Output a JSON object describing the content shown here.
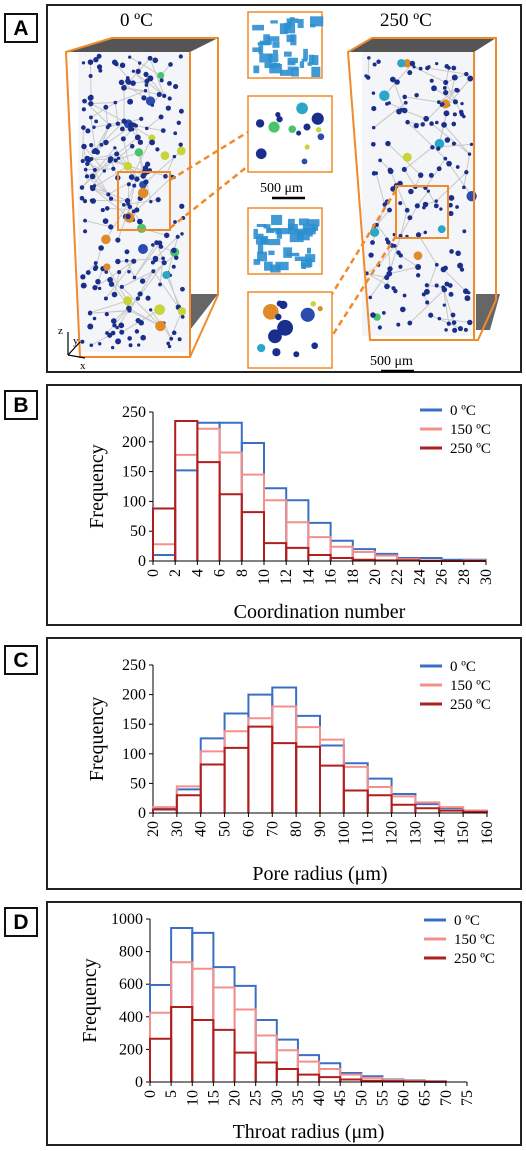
{
  "panel_a": {
    "tag": "A",
    "left_temp": "0 ºC",
    "right_temp": "250 ºC",
    "scale_center": "500 μm",
    "scale_right": "500 μm",
    "axes": {
      "x": "x",
      "y": "y",
      "z": "z"
    },
    "colors": {
      "frame": "#f08a2a",
      "pore": "#1a2f8c",
      "throat": "#c8c8c8"
    }
  },
  "chart_data": [
    {
      "panel": "B",
      "type": "bar",
      "xlabel": "Coordination number",
      "ylabel": "Frequency",
      "ylim": [
        0,
        250
      ],
      "yticks": [
        0,
        50,
        100,
        150,
        200,
        250
      ],
      "xticks": [
        "0",
        "2",
        "4",
        "6",
        "8",
        "10",
        "12",
        "14",
        "16",
        "18",
        "20",
        "22",
        "24",
        "26",
        "28",
        "30"
      ],
      "x": [
        0,
        2,
        4,
        6,
        8,
        10,
        12,
        14,
        16,
        18,
        20,
        22,
        24,
        26,
        28
      ],
      "bin_width": 2,
      "legend_position": "top-right",
      "series": [
        {
          "name": "0 ºC",
          "color": "#3a6fc4",
          "values": [
            10,
            152,
            232,
            232,
            198,
            122,
            102,
            64,
            34,
            20,
            12,
            5,
            5,
            2,
            2
          ]
        },
        {
          "name": "150 ºC",
          "color": "#f4908c",
          "values": [
            28,
            178,
            222,
            182,
            145,
            102,
            65,
            40,
            24,
            15,
            9,
            3,
            1,
            0,
            1
          ]
        },
        {
          "name": "250 ºC",
          "color": "#b01e1e",
          "values": [
            88,
            235,
            166,
            112,
            82,
            30,
            22,
            10,
            5,
            2,
            1,
            1,
            0,
            0,
            0
          ]
        }
      ]
    },
    {
      "panel": "C",
      "type": "bar",
      "xlabel": "Pore radius (μm)",
      "ylabel": "Frequency",
      "ylim": [
        0,
        250
      ],
      "yticks": [
        0,
        50,
        100,
        150,
        200,
        250
      ],
      "xticks": [
        "20",
        "30",
        "40",
        "50",
        "60",
        "70",
        "80",
        "90",
        "100",
        "110",
        "120",
        "130",
        "140",
        "150",
        "160"
      ],
      "x": [
        20,
        30,
        40,
        50,
        60,
        70,
        80,
        90,
        100,
        110,
        120,
        130,
        140,
        150
      ],
      "bin_width": 10,
      "legend_position": "top-right",
      "series": [
        {
          "name": "0 ºC",
          "color": "#3a6fc4",
          "values": [
            8,
            40,
            126,
            168,
            200,
            212,
            164,
            114,
            84,
            58,
            32,
            15,
            8,
            4
          ]
        },
        {
          "name": "150 ºC",
          "color": "#f4908c",
          "values": [
            10,
            45,
            104,
            138,
            160,
            180,
            145,
            124,
            78,
            44,
            28,
            18,
            10,
            4
          ]
        },
        {
          "name": "250 ºC",
          "color": "#b01e1e",
          "values": [
            6,
            30,
            82,
            110,
            146,
            118,
            112,
            80,
            38,
            30,
            14,
            8,
            4,
            2
          ]
        }
      ]
    },
    {
      "panel": "D",
      "type": "bar",
      "xlabel": "Throat radius (μm)",
      "ylabel": "Frequency",
      "ylim": [
        0,
        1000
      ],
      "yticks": [
        0,
        200,
        400,
        600,
        800,
        1000
      ],
      "xticks": [
        "0",
        "5",
        "10",
        "15",
        "20",
        "25",
        "30",
        "35",
        "40",
        "45",
        "50",
        "55",
        "60",
        "65",
        "70",
        "75"
      ],
      "x": [
        0,
        5,
        10,
        15,
        20,
        25,
        30,
        35,
        40,
        45,
        50,
        55,
        60,
        65
      ],
      "bin_width": 5,
      "legend_position": "top-right",
      "series": [
        {
          "name": "0 ºC",
          "color": "#3a6fc4",
          "values": [
            595,
            945,
            915,
            705,
            590,
            380,
            260,
            165,
            115,
            55,
            35,
            15,
            10,
            5
          ]
        },
        {
          "name": "150 ºC",
          "color": "#f4908c",
          "values": [
            425,
            735,
            695,
            580,
            445,
            285,
            195,
            125,
            80,
            45,
            25,
            12,
            8,
            4
          ]
        },
        {
          "name": "250 ºC",
          "color": "#b01e1e",
          "values": [
            265,
            460,
            380,
            320,
            180,
            120,
            80,
            45,
            30,
            15,
            8,
            5,
            3,
            1
          ]
        }
      ]
    }
  ]
}
